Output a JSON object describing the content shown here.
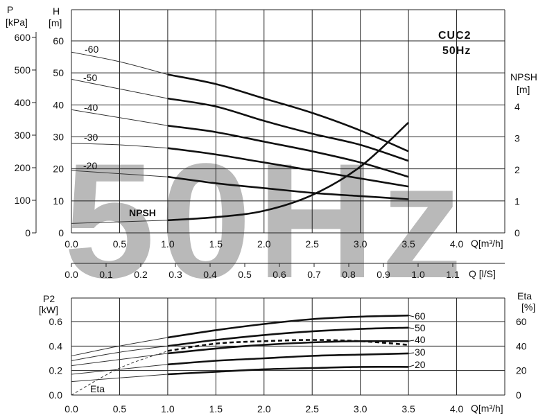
{
  "chart_data": [
    {
      "type": "line",
      "title": "CUC2",
      "subtitle": "50Hz",
      "watermark": "50Hz",
      "x_label": "Q[m³/h]",
      "x2_label": "Q [l/S]",
      "y_label_left": "H",
      "y_label_left_unit": "[m]",
      "y2_label_left": "P",
      "y2_label_left_unit": "[kPa]",
      "y_label_right": "NPSH",
      "y_label_right_unit": "[m]",
      "xlim": [
        0,
        4.5
      ],
      "x_ticks": [
        "0.0",
        "0.5",
        "1.0",
        "1.5",
        "2.0",
        "2.5",
        "3.0",
        "3.5",
        "4.0"
      ],
      "x2_ticks": [
        "0.0",
        "0.1",
        "0.2",
        "0.3",
        "0.4",
        "0.5",
        "0.6",
        "0.7",
        "0.8",
        "0.9",
        "1.0",
        "1.1"
      ],
      "ylim": [
        0,
        60
      ],
      "y_ticks": [
        "0",
        "10",
        "20",
        "30",
        "40",
        "50",
        "60"
      ],
      "y2_ticks": [
        "0",
        "100",
        "200",
        "300",
        "400",
        "500",
        "600"
      ],
      "y_right_ticks": [
        "0",
        "1",
        "2",
        "3",
        "4"
      ],
      "grid": true,
      "curve_labels": [
        "-60",
        "-50",
        "-40",
        "-30",
        "-20"
      ],
      "series": [
        {
          "name": "-60",
          "x": [
            0.0,
            0.5,
            1.0,
            1.5,
            2.0,
            2.5,
            3.0,
            3.5
          ],
          "y": [
            56.5,
            53.5,
            49.5,
            46.5,
            42,
            37.5,
            32,
            25.5
          ]
        },
        {
          "name": "-50",
          "x": [
            0.0,
            0.5,
            1.0,
            1.5,
            2.0,
            2.5,
            3.0,
            3.5
          ],
          "y": [
            48,
            45,
            42,
            39.5,
            35,
            31,
            27.5,
            22.5
          ]
        },
        {
          "name": "-40",
          "x": [
            0.0,
            0.5,
            1.0,
            1.5,
            2.0,
            2.5,
            3.0,
            3.5
          ],
          "y": [
            38.5,
            36,
            33.5,
            31.5,
            28.5,
            25.5,
            22,
            17.5
          ]
        },
        {
          "name": "-30",
          "x": [
            0.0,
            0.5,
            1.0,
            1.5,
            2.0,
            2.5,
            3.0,
            3.5
          ],
          "y": [
            28,
            27.5,
            26.5,
            24.5,
            22,
            19.5,
            17,
            14.5
          ]
        },
        {
          "name": "-20",
          "x": [
            0.0,
            0.5,
            1.0,
            1.5,
            2.0,
            2.5,
            3.0,
            3.5
          ],
          "y": [
            19.5,
            18.5,
            17.5,
            15.5,
            14,
            12.5,
            11.5,
            10.5
          ]
        },
        {
          "name": "NPSH",
          "x": [
            0.0,
            0.5,
            1.0,
            1.5,
            2.0,
            2.5,
            3.0,
            3.5
          ],
          "y": [
            0.3,
            0.35,
            0.4,
            0.5,
            0.7,
            1.2,
            2.1,
            3.5
          ]
        }
      ]
    },
    {
      "type": "line",
      "x_label": "Q[m³/h]",
      "y_label_left": "P2",
      "y_label_left_unit": "[kW]",
      "y_label_right": "Eta",
      "y_label_right_unit": "[%]",
      "xlim": [
        0,
        4.5
      ],
      "x_ticks": [
        "0.0",
        "0.5",
        "1.0",
        "1.5",
        "2.0",
        "2.5",
        "3.0",
        "3.5",
        "4.0"
      ],
      "ylim": [
        0,
        0.7
      ],
      "y_ticks": [
        "0.0",
        "0.2",
        "0.4",
        "0.6"
      ],
      "y_right_ticks": [
        "0",
        "20",
        "40",
        "60"
      ],
      "grid": true,
      "curve_labels": [
        "60",
        "50",
        "40",
        "30",
        "20"
      ],
      "series": [
        {
          "name": "60",
          "x": [
            0.0,
            0.5,
            1.0,
            1.5,
            2.0,
            2.5,
            3.0,
            3.5
          ],
          "y": [
            0.32,
            0.4,
            0.47,
            0.53,
            0.58,
            0.62,
            0.64,
            0.65
          ]
        },
        {
          "name": "50",
          "x": [
            0.0,
            0.5,
            1.0,
            1.5,
            2.0,
            2.5,
            3.0,
            3.5
          ],
          "y": [
            0.28,
            0.35,
            0.4,
            0.45,
            0.49,
            0.52,
            0.54,
            0.55
          ]
        },
        {
          "name": "40",
          "x": [
            0.0,
            0.5,
            1.0,
            1.5,
            2.0,
            2.5,
            3.0,
            3.5
          ],
          "y": [
            0.24,
            0.29,
            0.34,
            0.38,
            0.41,
            0.43,
            0.44,
            0.44
          ]
        },
        {
          "name": "30",
          "x": [
            0.0,
            0.5,
            1.0,
            1.5,
            2.0,
            2.5,
            3.0,
            3.5
          ],
          "y": [
            0.17,
            0.21,
            0.25,
            0.28,
            0.3,
            0.32,
            0.33,
            0.34
          ]
        },
        {
          "name": "20",
          "x": [
            0.0,
            0.5,
            1.0,
            1.5,
            2.0,
            2.5,
            3.0,
            3.5
          ],
          "y": [
            0.11,
            0.14,
            0.17,
            0.19,
            0.21,
            0.22,
            0.23,
            0.23
          ]
        },
        {
          "name": "Eta",
          "x": [
            0.0,
            0.5,
            1.0,
            1.5,
            2.0,
            2.5,
            3.0,
            3.5
          ],
          "y": [
            0.0,
            0.22,
            0.36,
            0.42,
            0.44,
            0.45,
            0.44,
            0.41
          ]
        }
      ]
    }
  ]
}
